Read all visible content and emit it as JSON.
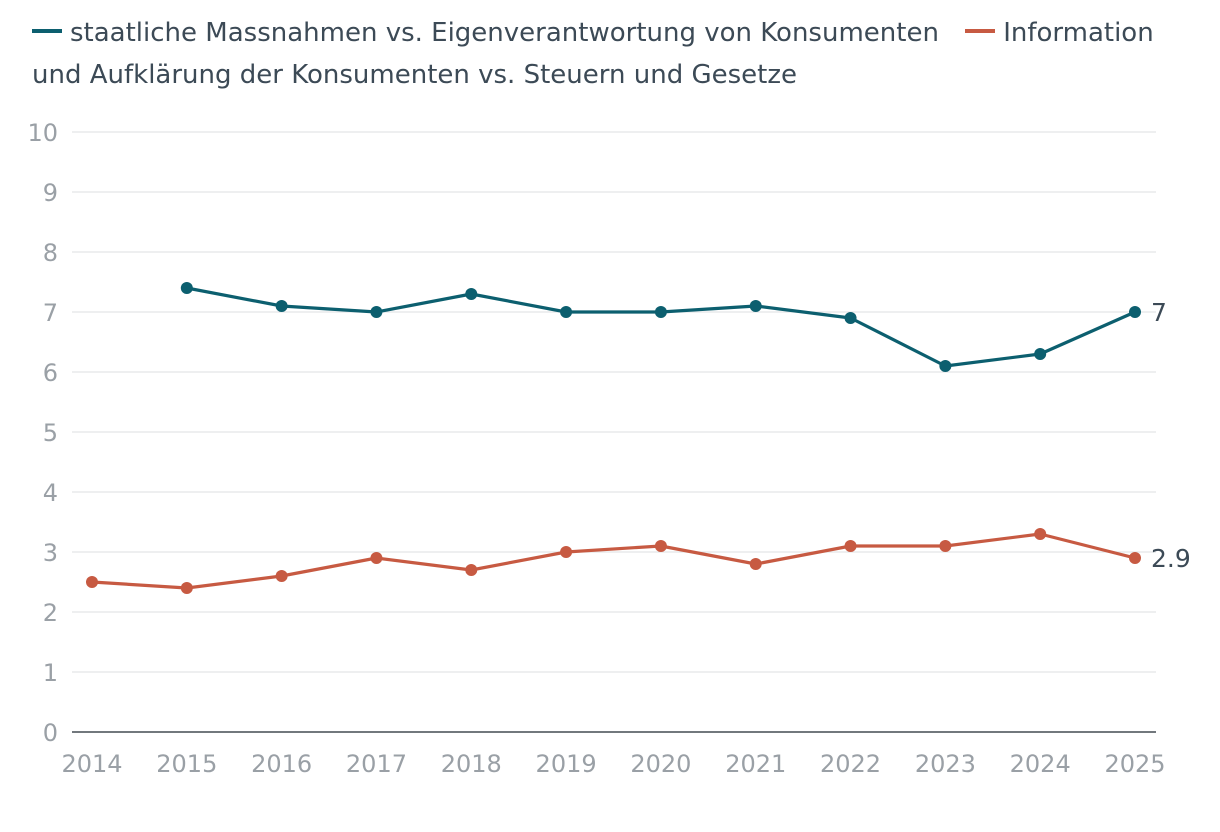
{
  "chart_data": {
    "type": "line",
    "title": "",
    "xlabel": "",
    "ylabel": "",
    "x": [
      "2014",
      "2015",
      "2016",
      "2017",
      "2018",
      "2019",
      "2020",
      "2021",
      "2022",
      "2023",
      "2024",
      "2025"
    ],
    "ylim": [
      0,
      10
    ],
    "yticks": [
      "0",
      "1",
      "2",
      "3",
      "4",
      "5",
      "6",
      "7",
      "8",
      "9",
      "10"
    ],
    "grid": true,
    "legend_position": "top",
    "series": [
      {
        "name": "staatliche Massnahmen vs. Eigenverantwortung von Konsumenten",
        "color": "#0c5f6f",
        "values": [
          null,
          7.4,
          7.1,
          7.0,
          7.3,
          7.0,
          7.0,
          7.1,
          6.9,
          6.1,
          6.3,
          7.0
        ],
        "end_label": "7"
      },
      {
        "name": "Information und Aufklärung der Konsumenten vs. Steuern und Gesetze",
        "color": "#c75a42",
        "values": [
          2.5,
          2.4,
          2.6,
          2.9,
          2.7,
          3.0,
          3.1,
          2.8,
          3.1,
          3.1,
          3.3,
          2.9
        ],
        "end_label": "2.9"
      }
    ]
  }
}
